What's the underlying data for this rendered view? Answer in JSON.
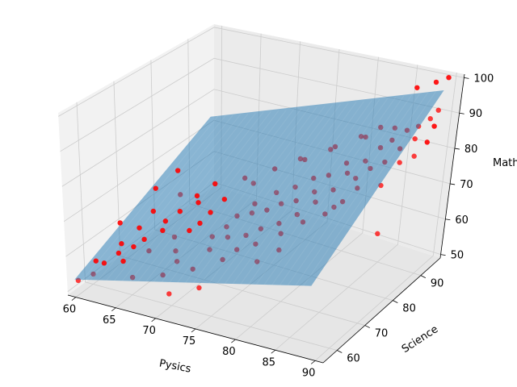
{
  "chart_data": {
    "type": "scatter",
    "projection": "3d",
    "xlabel": "Pysics",
    "ylabel": "Science",
    "zlabel": "Math",
    "xlim": [
      59,
      91
    ],
    "ylim": [
      55,
      97
    ],
    "zlim": [
      49,
      101
    ],
    "xticks": [
      "60",
      "65",
      "70",
      "75",
      "80",
      "85",
      "90"
    ],
    "yticks": [
      "60",
      "70",
      "80",
      "90"
    ],
    "zticks": [
      "50",
      "60",
      "70",
      "80",
      "90",
      "100"
    ],
    "grid": true,
    "colors": {
      "points": "#ff0000",
      "plane": "#1f77b4",
      "pane": "#f2f2f2",
      "grid": "#cccccc"
    },
    "fitted_plane": {
      "x_range": [
        59.5,
        89.5
      ],
      "y_range": [
        56,
        95
      ],
      "z_at_corners": [
        53,
        68,
        73,
        97
      ]
    },
    "points": [
      [
        59.5,
        57,
        52
      ],
      [
        61,
        58,
        54
      ],
      [
        60.5,
        60,
        56
      ],
      [
        62,
        59,
        57
      ],
      [
        63,
        61,
        59
      ],
      [
        62.5,
        63,
        60
      ],
      [
        64,
        60,
        58
      ],
      [
        64.5,
        62,
        61
      ],
      [
        61.5,
        65,
        64
      ],
      [
        63.5,
        66,
        63
      ],
      [
        65,
        64,
        62
      ],
      [
        66,
        63,
        60
      ],
      [
        66.5,
        66,
        64
      ],
      [
        64,
        69,
        66
      ],
      [
        66,
        68,
        65
      ],
      [
        67,
        70,
        67
      ],
      [
        68,
        66,
        63
      ],
      [
        69,
        64,
        61
      ],
      [
        69.5,
        67,
        65
      ],
      [
        70,
        69,
        66
      ],
      [
        68.5,
        72,
        69
      ],
      [
        70.5,
        71,
        68
      ],
      [
        71,
        74,
        70
      ],
      [
        72,
        68,
        64
      ],
      [
        72.5,
        66,
        62
      ],
      [
        73,
        70,
        66
      ],
      [
        73.5,
        72,
        68
      ],
      [
        74,
        68,
        65
      ],
      [
        74.5,
        75,
        70
      ],
      [
        75,
        73,
        69
      ],
      [
        75.5,
        70,
        65
      ],
      [
        76,
        78,
        72
      ],
      [
        76.5,
        74,
        70
      ],
      [
        77,
        71,
        67
      ],
      [
        77.5,
        76,
        71
      ],
      [
        78,
        79,
        74
      ],
      [
        78.5,
        73,
        68
      ],
      [
        79,
        77,
        72
      ],
      [
        79.5,
        81,
        76
      ],
      [
        80,
        75,
        70
      ],
      [
        80.5,
        79,
        74
      ],
      [
        81,
        82,
        77
      ],
      [
        81.5,
        77,
        73
      ],
      [
        82,
        85,
        79
      ],
      [
        82.5,
        80,
        75
      ],
      [
        83,
        83,
        78
      ],
      [
        83.5,
        78,
        72
      ],
      [
        84,
        86,
        80
      ],
      [
        84.5,
        82,
        78
      ],
      [
        85,
        88,
        83
      ],
      [
        85.5,
        84,
        80
      ],
      [
        86,
        89,
        85
      ],
      [
        86.5,
        86,
        81
      ],
      [
        87,
        91,
        87
      ],
      [
        87.5,
        88,
        84
      ],
      [
        88,
        92,
        88
      ],
      [
        88.5,
        90,
        86
      ],
      [
        89,
        93,
        90
      ],
      [
        89.5,
        94,
        92
      ],
      [
        89,
        89,
        82
      ],
      [
        88,
        87,
        81
      ],
      [
        87,
        84,
        76
      ],
      [
        86.5,
        94,
        97
      ],
      [
        88,
        96,
        98
      ],
      [
        89.5,
        96,
        100
      ],
      [
        90,
        92,
        89
      ],
      [
        89.7,
        91,
        85
      ],
      [
        88.5,
        80,
        66
      ],
      [
        65,
        74,
        75
      ],
      [
        62.5,
        80,
        62
      ],
      [
        63,
        72,
        70
      ],
      [
        70,
        62,
        60
      ],
      [
        73,
        78,
        73
      ],
      [
        75,
        64,
        62
      ],
      [
        78,
        67,
        66
      ],
      [
        80,
        70,
        68
      ],
      [
        82,
        72,
        71
      ],
      [
        84,
        74,
        73
      ],
      [
        85,
        77,
        75
      ],
      [
        86,
        79,
        78
      ],
      [
        83,
        88,
        85
      ],
      [
        80,
        86,
        82
      ],
      [
        77,
        84,
        78
      ],
      [
        74,
        82,
        75
      ],
      [
        71,
        80,
        72
      ],
      [
        68,
        78,
        70
      ],
      [
        67,
        75,
        68
      ],
      [
        69,
        60,
        57
      ],
      [
        72,
        62,
        59
      ],
      [
        76,
        66,
        64
      ],
      [
        79,
        65,
        63
      ],
      [
        81,
        67,
        66
      ],
      [
        66,
        58,
        56
      ],
      [
        71,
        57,
        55
      ],
      [
        74,
        59,
        57
      ],
      [
        85,
        92,
        86
      ],
      [
        84,
        90,
        87
      ],
      [
        82,
        89,
        84
      ],
      [
        79,
        87,
        80
      ],
      [
        76,
        85,
        77
      ]
    ]
  }
}
